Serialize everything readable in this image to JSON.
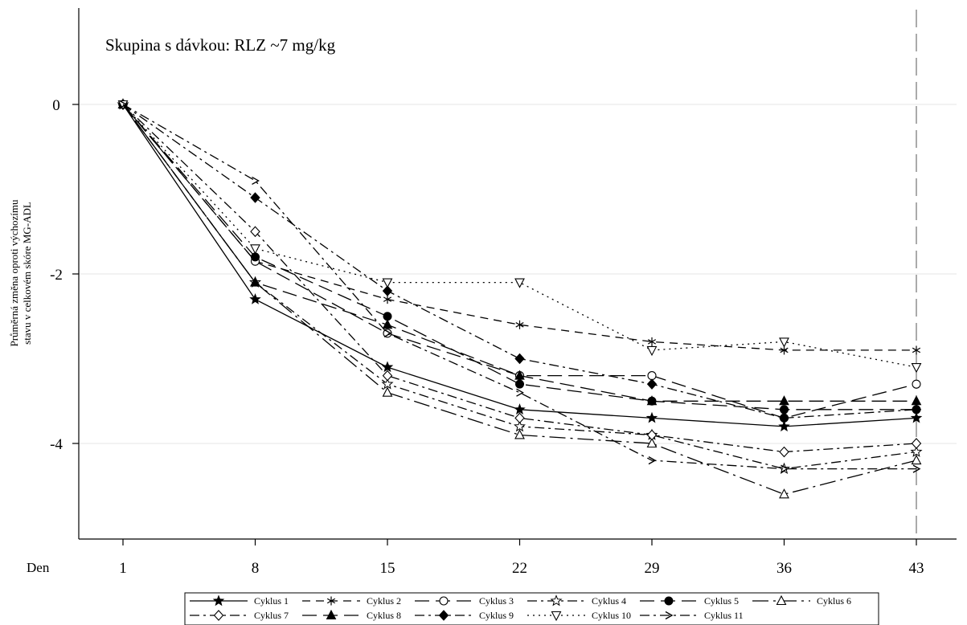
{
  "chart_data": {
    "type": "line",
    "title": "Skupina s dávkou: RLZ ~7 mg/kg",
    "xlabel": "Den",
    "ylabel": "Průměrná změna oproti výchozímu stavu v celkovém skóre MG-ADL",
    "ylabel_lines": [
      "Průměrná změna oproti výchozímu",
      "stavu v celkovém skóre MG-ADL"
    ],
    "x": [
      1,
      8,
      15,
      22,
      29,
      36,
      43
    ],
    "x_tick_labels": [
      "1",
      "8",
      "15",
      "22",
      "29",
      "36",
      "43"
    ],
    "y_ticks": [
      0,
      -2,
      -4
    ],
    "y_tick_labels": [
      "0",
      "-2",
      "-4"
    ],
    "ylim": [
      -5.1,
      1.1
    ],
    "grid": "horizontal",
    "reference_line_x": 43,
    "series": [
      {
        "name": "Cyklus 1",
        "marker": "star-filled",
        "dash": "solid",
        "values": [
          0,
          -2.3,
          -3.1,
          -3.6,
          -3.7,
          -3.8,
          -3.7
        ]
      },
      {
        "name": "Cyklus 2",
        "marker": "asterisk",
        "dash": "dashed",
        "values": [
          0,
          -1.85,
          -2.3,
          -2.6,
          -2.8,
          -2.9,
          -2.9
        ]
      },
      {
        "name": "Cyklus 3",
        "marker": "circle-open",
        "dash": "long-dash",
        "values": [
          0,
          -1.85,
          -2.7,
          -3.2,
          -3.2,
          -3.7,
          -3.3
        ]
      },
      {
        "name": "Cyklus 4",
        "marker": "star-open",
        "dash": "dash-dot",
        "values": [
          0,
          -2.1,
          -3.3,
          -3.8,
          -3.9,
          -4.3,
          -4.1
        ]
      },
      {
        "name": "Cyklus 5",
        "marker": "circle-filled",
        "dash": "long-dash",
        "values": [
          0,
          -1.8,
          -2.5,
          -3.3,
          -3.5,
          -3.6,
          -3.6
        ]
      },
      {
        "name": "Cyklus 6",
        "marker": "triangle-open",
        "dash": "long-dash-dot",
        "values": [
          0,
          -2.1,
          -3.4,
          -3.9,
          -4.0,
          -4.6,
          -4.2
        ]
      },
      {
        "name": "Cyklus 7",
        "marker": "diamond-open",
        "dash": "dash-dot",
        "values": [
          0,
          -1.5,
          -3.2,
          -3.7,
          -3.9,
          -4.1,
          -4.0
        ]
      },
      {
        "name": "Cyklus 8",
        "marker": "triangle-filled",
        "dash": "long-dash",
        "values": [
          0,
          -2.1,
          -2.6,
          -3.2,
          -3.5,
          -3.5,
          -3.5
        ]
      },
      {
        "name": "Cyklus 9",
        "marker": "diamond-filled",
        "dash": "dash-dot",
        "values": [
          0,
          -1.1,
          -2.2,
          -3.0,
          -3.3,
          -3.7,
          -3.6
        ]
      },
      {
        "name": "Cyklus 10",
        "marker": "triangle-down-open",
        "dash": "dotted",
        "values": [
          0,
          -1.7,
          -2.1,
          -2.1,
          -2.9,
          -2.8,
          -3.1
        ]
      },
      {
        "name": "Cyklus 11",
        "marker": "chevron",
        "dash": "dash-dot",
        "values": [
          0,
          -0.9,
          -2.7,
          -3.4,
          -4.2,
          -4.3,
          -4.3
        ]
      }
    ],
    "legend_placement": "bottom"
  }
}
